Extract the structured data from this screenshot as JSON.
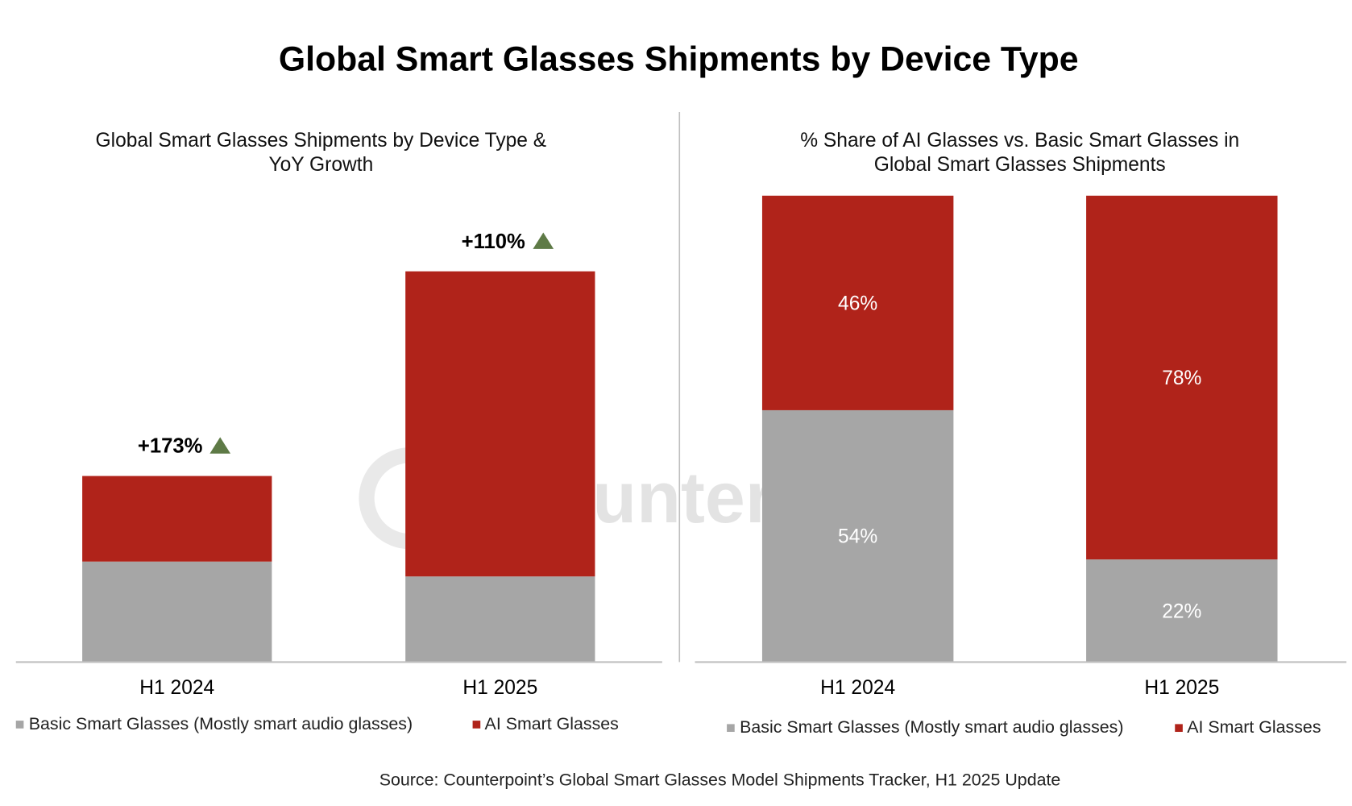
{
  "title": "Global Smart Glasses Shipments by Device Type",
  "source": "Source: Counterpoint’s Global Smart Glasses Model Shipments Tracker, H1 2025 Update",
  "watermark": "Counterpoint",
  "colors": {
    "basic": "#a6a6a6",
    "ai": "#b0231a",
    "growth_arrow": "#5e7a46",
    "axis": "#bfbfbf"
  },
  "chart_data": [
    {
      "type": "bar",
      "stacked": true,
      "title": "Global Smart Glasses Shipments by Device Type &",
      "title_line2": "YoY Growth",
      "categories": [
        "H1 2024",
        "H1 2025"
      ],
      "series": [
        {
          "name": "Basic Smart Glasses (Mostly smart audio glasses)",
          "values": [
            54,
            46
          ]
        },
        {
          "name": "AI Smart Glasses",
          "values": [
            46,
            164
          ]
        }
      ],
      "annotations": [
        {
          "category": "H1 2024",
          "text": "+173%",
          "icon": "up-triangle-icon"
        },
        {
          "category": "H1 2025",
          "text": "+110%",
          "icon": "up-triangle-icon"
        }
      ],
      "ylim": [
        0,
        240
      ],
      "y_axis_shown": false,
      "grid": false,
      "legend": "bottom"
    },
    {
      "type": "bar",
      "stacked": true,
      "percent": true,
      "title": "% Share of AI Glasses vs. Basic Smart Glasses in",
      "title_line2": "Global Smart Glasses Shipments",
      "categories": [
        "H1 2024",
        "H1 2025"
      ],
      "series": [
        {
          "name": "Basic Smart Glasses (Mostly smart audio glasses)",
          "values": [
            54,
            22
          ],
          "labels": [
            "54%",
            "22%"
          ]
        },
        {
          "name": "AI Smart Glasses",
          "values": [
            46,
            78
          ],
          "labels": [
            "46%",
            "78%"
          ]
        }
      ],
      "ylim": [
        0,
        100
      ],
      "y_axis_shown": false,
      "grid": false,
      "legend": "bottom"
    }
  ]
}
